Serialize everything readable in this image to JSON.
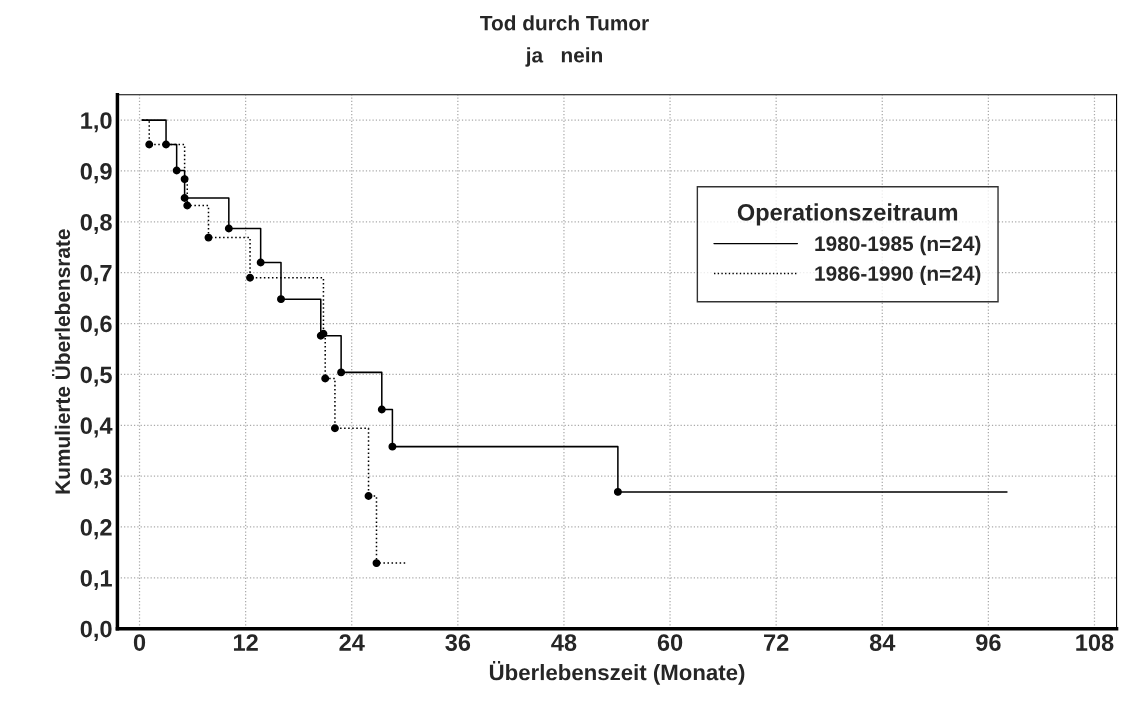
{
  "chart_data": {
    "type": "step",
    "title": "Tod durch Tumor",
    "subtitle": "ja   nein",
    "xlabel": "Überlebenszeit (Monate)",
    "ylabel": "Kumulierte Überlebensrate",
    "legend_title": "Operationszeitraum",
    "series": [
      {
        "name": "1980-1985 (n=24)",
        "color": "#000000",
        "line_style": "solid",
        "x": [
          0.3,
          3.0,
          4.2,
          5.1,
          10.1,
          13.7,
          16.0,
          20.5,
          22.8,
          27.4,
          28.6,
          54.1,
          98.1
        ],
        "values": [
          1.0,
          0.952,
          0.901,
          0.847,
          0.787,
          0.72,
          0.648,
          0.576,
          0.504,
          0.431,
          0.358,
          0.269,
          0.269
        ]
      },
      {
        "name": "1986-1990 (n=24)",
        "color": "#000000",
        "line_style": "dotted",
        "x": [
          0.3,
          1.1,
          5.1,
          5.4,
          7.8,
          12.5,
          20.8,
          21.0,
          22.1,
          25.9,
          26.8,
          30.2
        ],
        "values": [
          1.0,
          0.952,
          0.884,
          0.832,
          0.769,
          0.69,
          0.58,
          0.492,
          0.394,
          0.261,
          0.129,
          0.129
        ]
      }
    ],
    "marker": "circle",
    "xlim": [
      -2.5,
      110.5
    ],
    "xticks": [
      0,
      12,
      24,
      36,
      48,
      60,
      72,
      84,
      96,
      108
    ],
    "ylim": [
      0,
      1.05
    ],
    "yticks": [
      {
        "value": 0,
        "label": "0,0"
      },
      {
        "value": 0.1,
        "label": "0,1"
      },
      {
        "value": 0.2,
        "label": "0,2"
      },
      {
        "value": 0.3,
        "label": "0,3"
      },
      {
        "value": 0.4,
        "label": "0,4"
      },
      {
        "value": 0.5,
        "label": "0,5"
      },
      {
        "value": 0.6,
        "label": "0,6"
      },
      {
        "value": 0.7,
        "label": "0,7"
      },
      {
        "value": 0.8,
        "label": "0,8"
      },
      {
        "value": 0.9,
        "label": "0,9"
      },
      {
        "value": 1.0,
        "label": "1,0"
      }
    ],
    "grid": true,
    "legend": "right"
  }
}
